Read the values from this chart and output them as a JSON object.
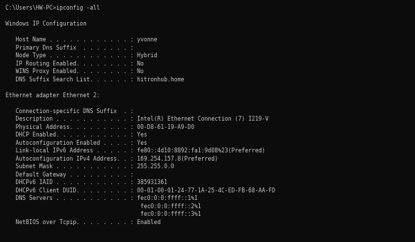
{
  "bg_color": "#0C0C0C",
  "text_color": "#C8C8C8",
  "font_size": 5.8,
  "fig_width": 6.0,
  "fig_height": 3.51,
  "dpi": 100,
  "lines": [
    "C:\\Users\\HW-PC>ipconfig -all",
    "",
    "Windows IP Configuration",
    "",
    "   Host Name . . . . . . . . . . . . : yvonne",
    "   Primary Dns Suffix  . . . . . . . :",
    "   Node Type . . . . . . . . . . . . : Hybrid",
    "   IP Routing Enabled. . . . . . . . : No",
    "   WINS Proxy Enabled. . . . . . . . : No",
    "   DNS Suffix Search List. . . . . . : hitronhub.home",
    "",
    "Ethernet adapter Ethernet 2:",
    "",
    "   Connection-specific DNS Suffix  . :",
    "   Description . . . . . . . . . . . : Intel(R) Ethernet Connection (7) I219-V",
    "   Physical Address. . . . . . . . . : 00-D8-61-19-A9-D0",
    "   DHCP Enabled. . . . . . . . . . . : Yes",
    "   Autoconfiguration Enabled . . . . : Yes",
    "   Link-local IPv6 Address . . . . . : fe80::4d10:8892:fa1:9d08%23(Preferred)",
    "   Autoconfiguration IPv4 Address. . : 169.254.157.8(Preferred)",
    "   Subnet Mask . . . . . . . . . . . : 255.255.0.0",
    "   Default Gateway . . . . . . . . . :",
    "   DHCPv6 IAID . . . . . . . . . . . : 385931361",
    "   DHCPv6 Client DUID. . . . . . . . : 00-01-00-01-24-77-1A-25-4C-ED-FB-68-AA-FD",
    "   DNS Servers . . . . . . . . . . . : fec0:0:0:ffff::1%1",
    "                                        fec0:0:0:ffff::2%1",
    "                                        fec0:0:0:ffff::3%1",
    "   NetBIOS over Tcpip. . . . . . . . : Enabled"
  ]
}
